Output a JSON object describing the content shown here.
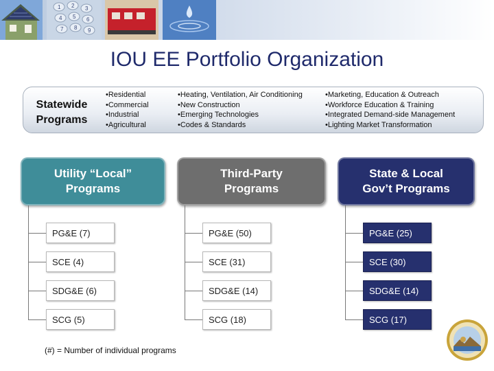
{
  "header": {
    "title": "IOU EE Portfolio Organization"
  },
  "statewide": {
    "label_line1": "Statewide",
    "label_line2": "Programs",
    "sectors": [
      "Residential",
      "Commercial",
      "Industrial",
      "Agricultural"
    ],
    "cross_cutting_1": [
      "Heating, Ventilation, Air Conditioning",
      "New Construction",
      "Emerging Technologies",
      "Codes & Standards"
    ],
    "cross_cutting_2": [
      "Marketing, Education & Outreach",
      "Workforce Education & Training",
      "Integrated Demand-side Management",
      "Lighting Market Transformation"
    ]
  },
  "columns": [
    {
      "title_line1": "Utility “Local”",
      "title_line2": "Programs",
      "color": "#3f8d99",
      "box_color": "#ffffff",
      "text_color": "#222222",
      "rows": [
        "PG&E  (7)",
        "SCE  (4)",
        "SDG&E  (6)",
        "SCG  (5)"
      ]
    },
    {
      "title_line1": "Third-Party",
      "title_line2": "Programs",
      "color": "#6e6e6e",
      "box_color": "#ffffff",
      "text_color": "#222222",
      "rows": [
        "PG&E  (50)",
        "SCE  (31)",
        "SDG&E  (14)",
        "SCG  (18)"
      ]
    },
    {
      "title_line1": "State & Local",
      "title_line2": "Gov’t Programs",
      "color": "#26306e",
      "box_color": "#26306e",
      "text_color": "#ffffff",
      "rows": [
        "PG&E  (25)",
        "SCE  (30)",
        "SDG&E  (14)",
        "SCG  (17)"
      ]
    }
  ],
  "footnote": "(#) = Number of individual programs"
}
